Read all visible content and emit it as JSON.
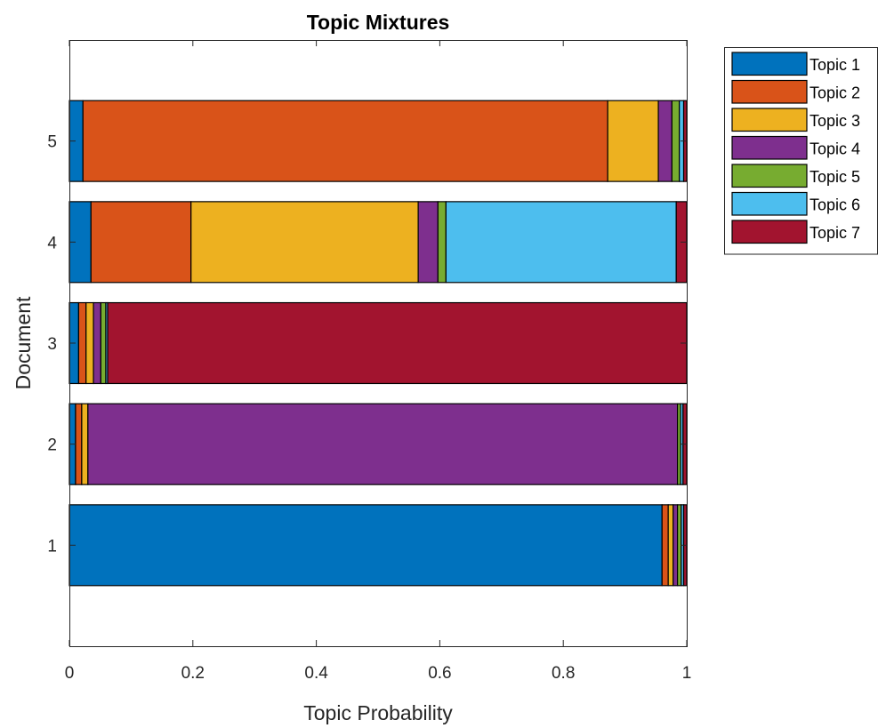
{
  "chart_data": {
    "type": "bar",
    "orientation": "horizontal",
    "stacked": true,
    "title": "Topic Mixtures",
    "xlabel": "Topic Probability",
    "ylabel": "Document",
    "xlim": [
      0,
      1
    ],
    "ylim": [
      0,
      6
    ],
    "xticks": [
      "0",
      "0.2",
      "0.4",
      "0.6",
      "0.8",
      "1"
    ],
    "categories": [
      "1",
      "2",
      "3",
      "4",
      "5"
    ],
    "grid": false,
    "legend_position": "outside-top-right",
    "series": [
      {
        "name": "Topic 1",
        "color": "#0072BD",
        "values": [
          0.96,
          0.01,
          0.015,
          0.035,
          0.022
        ]
      },
      {
        "name": "Topic 2",
        "color": "#D95319",
        "values": [
          0.01,
          0.01,
          0.012,
          0.162,
          0.85
        ]
      },
      {
        "name": "Topic 3",
        "color": "#EDB120",
        "values": [
          0.008,
          0.01,
          0.012,
          0.368,
          0.082
        ]
      },
      {
        "name": "Topic 4",
        "color": "#7E2F8E",
        "values": [
          0.007,
          0.955,
          0.012,
          0.032,
          0.022
        ]
      },
      {
        "name": "Topic 5",
        "color": "#77AC30",
        "values": [
          0.006,
          0.005,
          0.008,
          0.013,
          0.012
        ]
      },
      {
        "name": "Topic 6",
        "color": "#4DBEEE",
        "values": [
          0.004,
          0.004,
          0.003,
          0.373,
          0.007
        ]
      },
      {
        "name": "Topic 7",
        "color": "#A2142F",
        "values": [
          0.005,
          0.006,
          0.938,
          0.017,
          0.005
        ]
      }
    ]
  }
}
